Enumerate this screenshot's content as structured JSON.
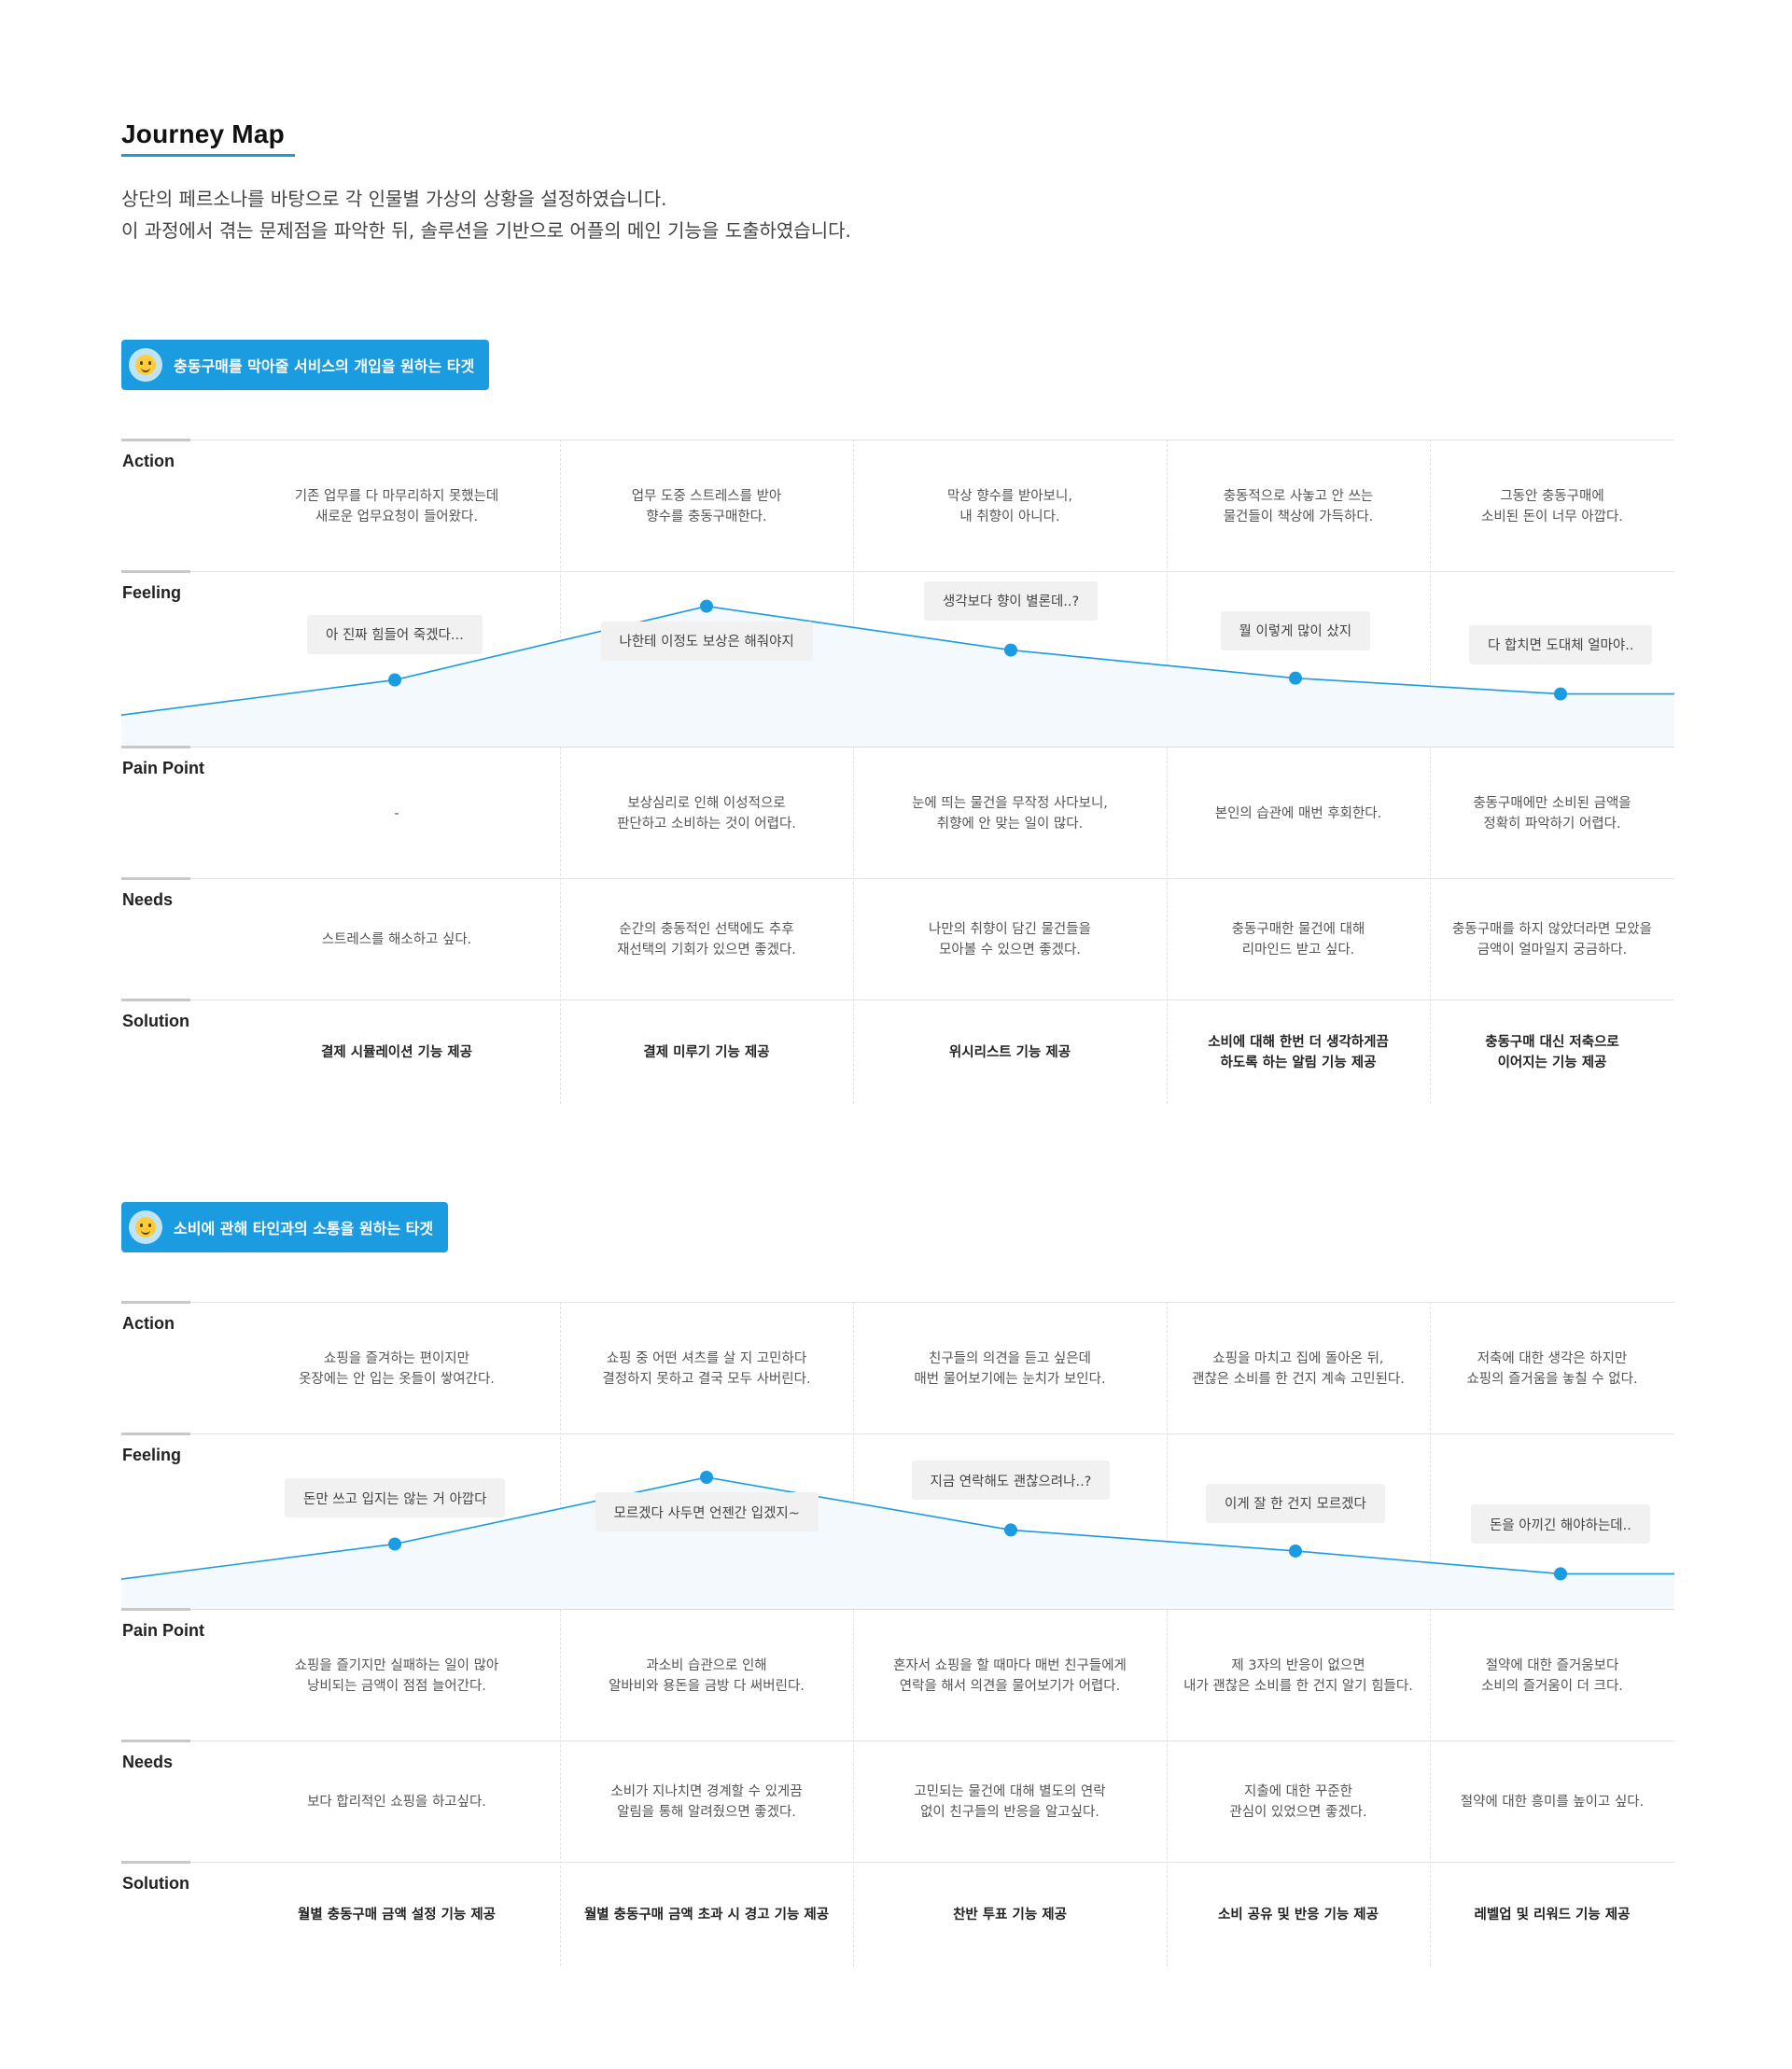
{
  "page": {
    "title": "Journey Map",
    "intro": [
      "상단의 페르소나를 바탕으로 각 인물별 가상의 상황을 설정하였습니다.",
      "이 과정에서 겪는 문제점을 파악한 뒤, 솔루션을 기반으로 어플의 메인 기능을 도출하였습니다."
    ]
  },
  "colors": {
    "accent": "#1b9be0",
    "curve": "#1b9be0",
    "fill": "#f3f9fd",
    "bubble": "#f1f1f1"
  },
  "row_labels": [
    "Action",
    "Feeling",
    "Pain Point",
    "Needs",
    "Solution"
  ],
  "maps": [
    {
      "target": "충동구매를 막아줄 서비스의 개입을 원하는 타겟",
      "icon": "smiling-face-icon",
      "action": [
        "기존 업무를 다 마무리하지 못했는데\n새로운 업무요청이 들어왔다.",
        "업무 도중 스트레스를 받아\n향수를 충동구매한다.",
        "막상 향수를 받아보니,\n내 취향이 아니다.",
        "충동적으로 사놓고 안 쓰는\n물건들이 책상에 가득하다.",
        "그동안 충동구매에\n소비된 돈이 너무 아깝다."
      ],
      "feeling": [
        "아 진짜 힘들어 죽겠다...",
        "나한테 이정도 보상은 해줘야지",
        "생각보다 향이 별론데..?",
        "뭘 이렇게 많이 샀지",
        "다 합치면 도대체 얼마야.."
      ],
      "feeling_level": [
        0.38,
        0.8,
        0.55,
        0.39,
        0.3
      ],
      "pain_point": [
        "-",
        "보상심리로 인해 이성적으로\n판단하고 소비하는 것이 어렵다.",
        "눈에 띄는 물건을 무작정 사다보니,\n취향에 안 맞는 일이 많다.",
        "본인의 습관에 매번 후회한다.",
        "충동구매에만 소비된 금액을\n정확히 파악하기 어렵다."
      ],
      "needs": [
        "스트레스를 해소하고 싶다.",
        "순간의 충동적인 선택에도 추후\n재선택의 기회가 있으면 좋겠다.",
        "나만의 취향이 담긴 물건들을\n모아볼 수 있으면 좋겠다.",
        "충동구매한 물건에 대해\n리마인드 받고 싶다.",
        "충동구매를 하지 않았더라면 모았을\n금액이 얼마일지 궁금하다."
      ],
      "solution": [
        "결제 시뮬레이션 기능 제공",
        "결제 미루기 기능 제공",
        "위시리스트 기능 제공",
        "소비에 대해 한번 더 생각하게끔\n하도록 하는 알림 기능 제공",
        "충동구매 대신 저축으로\n이어지는 기능 제공"
      ]
    },
    {
      "target": "소비에 관해 타인과의 소통을 원하는 타겟",
      "icon": "star-struck-face-icon",
      "action": [
        "쇼핑을 즐겨하는 편이지만\n옷장에는 안 입는 옷들이 쌓여간다.",
        "쇼핑 중 어떤 셔츠를 살 지 고민하다\n결정하지 못하고 결국 모두 사버린다.",
        "친구들의 의견을 듣고 싶은데\n매번 물어보기에는 눈치가 보인다.",
        "쇼핑을 마치고 집에 돌아온 뒤,\n괜찮은 소비를 한 건지 계속 고민된다.",
        "저축에 대한 생각은 하지만\n쇼핑의 즐거움을 놓칠 수 없다."
      ],
      "feeling": [
        "돈만 쓰고 입지는 않는 거 아깝다",
        "모르겠다 사두면 언젠간 입겠지~",
        "지금 연락해도 괜찮으려나..?",
        "이게 잘 한 건지 모르겠다",
        "돈을 아끼긴 해야하는데.."
      ],
      "feeling_level": [
        0.37,
        0.75,
        0.45,
        0.33,
        0.2
      ],
      "pain_point": [
        "쇼핑을 즐기지만 실패하는 일이 많아\n낭비되는 금액이 점점 늘어간다.",
        "과소비 습관으로 인해\n알바비와 용돈을 금방 다 써버린다.",
        "혼자서 쇼핑을 할 때마다 매번 친구들에게\n연락을 해서 의견을 물어보기가 어렵다.",
        "제 3자의 반응이 없으면\n내가 괜찮은 소비를 한 건지 알기 힘들다.",
        "절약에 대한 즐거움보다\n소비의 즐거움이 더 크다."
      ],
      "needs": [
        "보다 합리적인 쇼핑을 하고싶다.",
        "소비가 지나치면 경계할 수 있게끔\n알림을 통해 알려줬으면 좋겠다.",
        "고민되는 물건에 대해 별도의 연락\n없이 친구들의 반응을 알고싶다.",
        "지출에 대한 꾸준한\n관심이 있었으면 좋겠다.",
        "절약에 대한 흥미를 높이고 싶다."
      ],
      "solution": [
        "월별 충동구매 금액 설정 기능 제공",
        "월별 충동구매 금액 초과 시 경고 기능 제공",
        "찬반 투표 기능 제공",
        "소비 공유 및 반응 기능 제공",
        "레벨업 및 리워드 기능 제공"
      ]
    }
  ]
}
